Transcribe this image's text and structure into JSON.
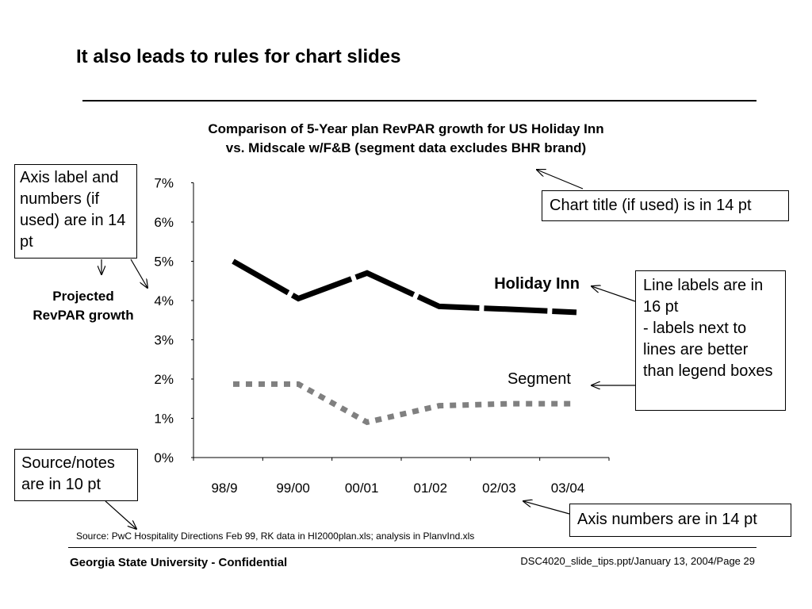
{
  "slide": {
    "title": "It also leads to rules for chart slides",
    "source": "Source: PwC Hospitality Directions Feb 99, RK data in HI2000plan.xls; analysis in PlanvInd.xls",
    "footer_left": "Georgia State University - Confidential",
    "footer_right": "DSC4020_slide_tips.ppt/January 13, 2004/Page 29"
  },
  "callouts": {
    "axis_label": "Axis label and numbers (if used) are in 14 pt",
    "chart_title": "Chart title (if used) is in 14 pt",
    "line_labels": "Line labels are in 16 pt\n- labels next to lines are better than legend boxes",
    "source_notes": "Source/notes are in 10 pt",
    "axis_numbers": "Axis numbers are in 14 pt"
  },
  "chart_data": {
    "type": "line",
    "title_line1": "Comparison of 5-Year plan RevPAR growth for US Holiday Inn",
    "title_line2": "vs. Midscale w/F&B (segment data excludes BHR brand)",
    "ylabel": "Projected RevPAR growth",
    "categories": [
      "98/9",
      "99/00",
      "00/01",
      "01/02",
      "02/03",
      "03/04"
    ],
    "yticks": [
      "0%",
      "1%",
      "2%",
      "3%",
      "4%",
      "5%",
      "6%",
      "7%"
    ],
    "ylim": [
      0,
      7
    ],
    "grid": false,
    "series": [
      {
        "name": "Holiday Inn",
        "x": [
          0,
          0.95,
          1.95,
          3.0,
          4.0,
          5.0
        ],
        "values": [
          5.0,
          4.05,
          4.7,
          3.85,
          3.78,
          3.7
        ],
        "color": "#000000",
        "style": "solid"
      },
      {
        "name": "Segment",
        "x": [
          0,
          0.95,
          1.95,
          3.0,
          4.0,
          5.0
        ],
        "values": [
          1.87,
          1.87,
          0.9,
          1.32,
          1.37,
          1.37
        ],
        "color": "#808080",
        "style": "dotted"
      }
    ]
  }
}
